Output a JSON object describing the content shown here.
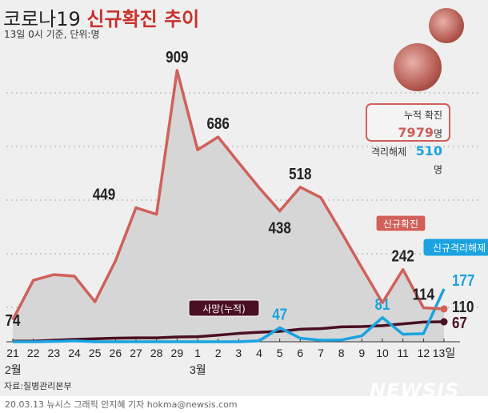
{
  "title_plain": "코로나19",
  "title_bold": "신규확진 추이",
  "subtitle": "13일 0시 기준, 단위:명",
  "legend": {
    "cum_label": "누적 확진",
    "cum_value": "7979",
    "recovered_label": "격리해제",
    "recovered_value": "510",
    "unit": "명"
  },
  "source": "자료:질병관리본부",
  "credit": "20.03.13 뉴시스 그래픽 안지혜 기자 hokma@newsis.com",
  "logo": "NEWSIS",
  "colors": {
    "new": "#d0605a",
    "recovered": "#1aa3e0",
    "deaths": "#4a0f22",
    "area": "#d6d6d6"
  },
  "chart_data": {
    "type": "line",
    "categories": [
      "21",
      "22",
      "23",
      "24",
      "25",
      "26",
      "27",
      "28",
      "29",
      "1",
      "2",
      "3",
      "4",
      "5",
      "6",
      "7",
      "8",
      "9",
      "10",
      "11",
      "12",
      "13일"
    ],
    "month_labels": [
      {
        "at": "21",
        "label": "2월"
      },
      {
        "at": "1",
        "label": "3월"
      }
    ],
    "ylim": [
      0,
      909
    ],
    "grid": true,
    "series": [
      {
        "name": "신규확진",
        "values": [
          74,
          206,
          225,
          220,
          134,
          271,
          449,
          427,
          909,
          643,
          686,
          600,
          516,
          438,
          518,
          483,
          367,
          248,
          131,
          242,
          114,
          110
        ],
        "labels": {
          "0": "74",
          "6": "449",
          "8": "909",
          "10": "686",
          "13": "438",
          "14": "518",
          "19": "242",
          "20": "114",
          "21": "110"
        }
      },
      {
        "name": "신규격리해제",
        "values": [
          0,
          0,
          1,
          3,
          0,
          0,
          0,
          0,
          0,
          0,
          0,
          0,
          3,
          47,
          12,
          5,
          6,
          20,
          81,
          25,
          27,
          177
        ],
        "labels": {
          "13": "47",
          "18": "81",
          "21": "177"
        }
      },
      {
        "name": "사망(누적)",
        "values": [
          2,
          2,
          5,
          8,
          10,
          12,
          13,
          13,
          16,
          17,
          22,
          28,
          32,
          35,
          42,
          44,
          50,
          51,
          54,
          60,
          66,
          67
        ],
        "labels": {
          "21": "67"
        }
      }
    ]
  }
}
